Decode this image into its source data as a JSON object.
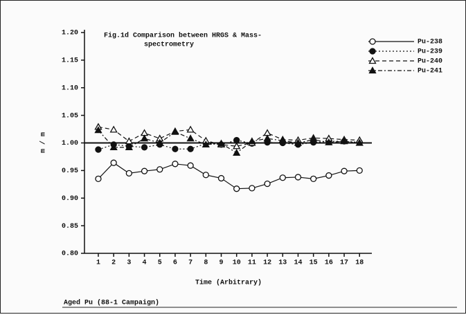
{
  "chart_data": {
    "type": "line",
    "title": [
      "Fig.1d Comparison between HRGS & Mass-",
      "spectrometry"
    ],
    "xlabel": "Time (Arbitrary)",
    "ylabel": "m / m",
    "footer": "Aged Pu (88-1 Campaign)",
    "x": [
      1,
      2,
      3,
      4,
      5,
      6,
      7,
      8,
      9,
      10,
      11,
      12,
      13,
      14,
      15,
      16,
      17,
      18
    ],
    "xlim": [
      0.1,
      18.8
    ],
    "xticks": [
      1,
      2,
      3,
      4,
      5,
      6,
      7,
      8,
      9,
      10,
      11,
      12,
      13,
      14,
      15,
      16,
      17,
      18
    ],
    "ylim": [
      0.8,
      1.2
    ],
    "yticks": [
      {
        "value": 0.8,
        "label": "0.80"
      },
      {
        "value": 0.85,
        "label": "0.85"
      },
      {
        "value": 0.9,
        "label": "0.90"
      },
      {
        "value": 0.95,
        "label": "0.95"
      },
      {
        "value": 1.0,
        "label": "1.00"
      },
      {
        "value": 1.05,
        "label": "1.05"
      },
      {
        "value": 1.1,
        "label": "1.10"
      },
      {
        "value": 1.15,
        "label": "1.15"
      },
      {
        "value": 1.2,
        "label": "1.20"
      }
    ],
    "reference_line": 1.0,
    "legend": "upper right outside",
    "series": [
      {
        "name": "Pu-238",
        "color": "#111111",
        "marker": "circle-open",
        "dash": "solid",
        "values": [
          0.935,
          0.964,
          0.945,
          0.949,
          0.952,
          0.962,
          0.959,
          0.942,
          0.936,
          0.917,
          0.918,
          0.926,
          0.937,
          0.938,
          0.935,
          0.941,
          0.949,
          0.95
        ]
      },
      {
        "name": "Pu-239",
        "color": "#111111",
        "marker": "circle-filled",
        "dash": "dotted",
        "values": [
          0.988,
          0.997,
          0.994,
          0.992,
          0.997,
          0.989,
          0.989,
          0.999,
          0.997,
          1.005,
          0.999,
          1.001,
          1.0,
          0.997,
          1.001,
          1.003,
          1.003,
          1.001
        ]
      },
      {
        "name": "Pu-240",
        "color": "#111111",
        "marker": "triangle-open",
        "dash": "dashed",
        "values": [
          1.029,
          1.024,
          1.003,
          1.018,
          1.008,
          1.021,
          1.024,
          1.004,
          0.997,
          0.994,
          1.0,
          1.018,
          1.006,
          1.005,
          1.009,
          1.008,
          1.006,
          1.005
        ]
      },
      {
        "name": "Pu-241",
        "color": "#111111",
        "marker": "triangle-filled",
        "dash": "dashdot",
        "values": [
          1.023,
          0.992,
          0.992,
          1.008,
          1.0,
          1.02,
          1.008,
          0.997,
          0.999,
          0.982,
          1.003,
          1.008,
          1.004,
          1.0,
          1.006,
          1.001,
          1.003,
          1.0
        ]
      }
    ]
  }
}
